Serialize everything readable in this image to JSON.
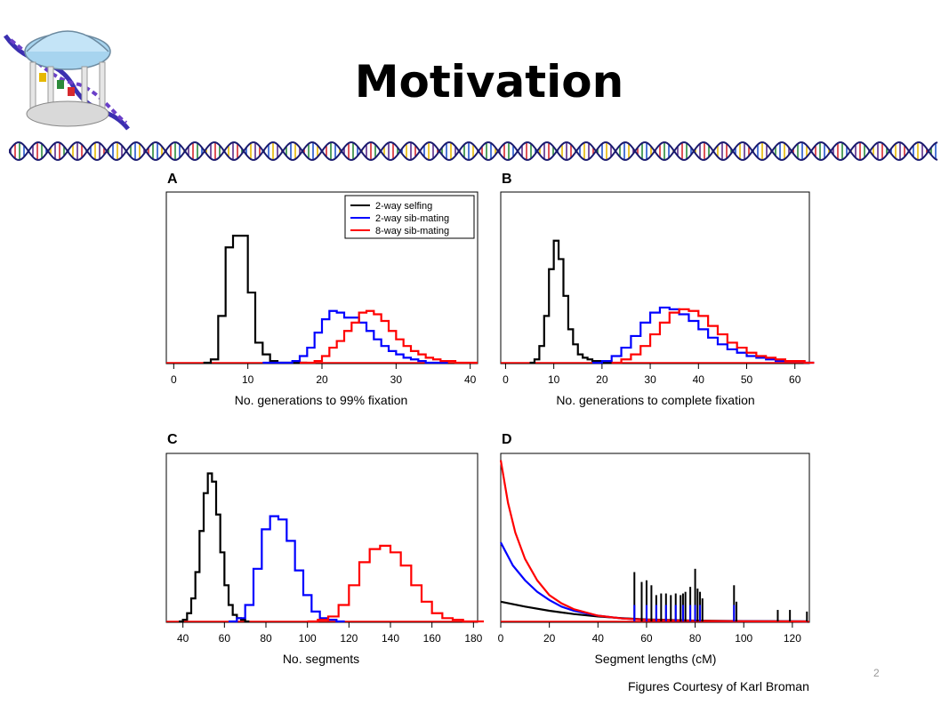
{
  "slide": {
    "title": "Motivation",
    "slide_number": "2",
    "credit": "Figures Courtesy of Karl Broman"
  },
  "logo": {
    "icon": "old-well-dna-logo-icon"
  },
  "divider": {
    "icon": "dna-helix-divider-icon",
    "colors": [
      "#5b2d8a",
      "#d6292e",
      "#2c8a3a",
      "#2255cc",
      "#e6b800"
    ]
  },
  "colors": {
    "selfing": "#000000",
    "sib": "#0000ff",
    "eight": "#ff0000"
  },
  "chart_data": [
    {
      "id": "A",
      "panel_label": "A",
      "type": "line",
      "style": "step-histogram",
      "xlabel": "No. generations to 99% fixation",
      "ylabel": "",
      "xlim": [
        -1,
        41
      ],
      "ylim": [
        0,
        1
      ],
      "xticks": [
        0,
        10,
        20,
        30,
        40
      ],
      "legend": {
        "position": "top-right",
        "entries": [
          "2-way selfing",
          "2-way sib-mating",
          "8-way sib-mating"
        ]
      },
      "series": [
        {
          "name": "2-way selfing",
          "color": "#000000",
          "x": [
            4,
            5,
            6,
            7,
            8,
            9,
            10,
            11,
            12,
            13,
            14,
            15,
            16,
            17
          ],
          "values": [
            0,
            0.02,
            0.28,
            0.69,
            0.76,
            0.76,
            0.42,
            0.12,
            0.05,
            0.01,
            0,
            0,
            0,
            0
          ]
        },
        {
          "name": "2-way sib-mating",
          "color": "#0000ff",
          "x": [
            12,
            13,
            14,
            15,
            16,
            17,
            18,
            19,
            20,
            21,
            22,
            23,
            24,
            25,
            26,
            27,
            28,
            29,
            30,
            31,
            32,
            33,
            34,
            35,
            36
          ],
          "values": [
            0,
            0,
            0,
            0,
            0.01,
            0.04,
            0.09,
            0.18,
            0.26,
            0.31,
            0.3,
            0.27,
            0.27,
            0.24,
            0.19,
            0.14,
            0.1,
            0.07,
            0.05,
            0.03,
            0.02,
            0.01,
            0,
            0,
            0
          ]
        },
        {
          "name": "8-way sib-mating",
          "color": "#ff0000",
          "x": [
            17,
            18,
            19,
            20,
            21,
            22,
            23,
            24,
            25,
            26,
            27,
            28,
            29,
            30,
            31,
            32,
            33,
            34,
            35,
            36,
            37,
            38,
            39,
            40
          ],
          "values": [
            0,
            0,
            0.01,
            0.04,
            0.09,
            0.13,
            0.19,
            0.24,
            0.3,
            0.31,
            0.29,
            0.25,
            0.19,
            0.14,
            0.1,
            0.07,
            0.05,
            0.03,
            0.02,
            0.01,
            0.01,
            0,
            0,
            0
          ]
        }
      ]
    },
    {
      "id": "B",
      "panel_label": "B",
      "type": "line",
      "style": "step-histogram",
      "xlabel": "No. generations to complete fixation",
      "ylabel": "",
      "xlim": [
        -1,
        63
      ],
      "ylim": [
        0,
        1
      ],
      "xticks": [
        0,
        10,
        20,
        30,
        40,
        50,
        60
      ],
      "series": [
        {
          "name": "2-way selfing",
          "color": "#000000",
          "x": [
            5,
            6,
            7,
            8,
            9,
            10,
            11,
            12,
            13,
            14,
            15,
            16,
            17,
            18,
            19,
            20,
            21
          ],
          "values": [
            0,
            0.02,
            0.1,
            0.28,
            0.56,
            0.73,
            0.62,
            0.4,
            0.2,
            0.11,
            0.05,
            0.03,
            0.02,
            0.01,
            0.01,
            0,
            0
          ]
        },
        {
          "name": "2-way sib-mating",
          "color": "#0000ff",
          "x": [
            18,
            20,
            22,
            24,
            26,
            28,
            30,
            32,
            34,
            36,
            38,
            40,
            42,
            44,
            46,
            48,
            50,
            52,
            54,
            56,
            58,
            60,
            62
          ],
          "values": [
            0,
            0.01,
            0.04,
            0.09,
            0.16,
            0.24,
            0.3,
            0.33,
            0.32,
            0.29,
            0.25,
            0.2,
            0.15,
            0.11,
            0.08,
            0.06,
            0.04,
            0.03,
            0.02,
            0.01,
            0.01,
            0.01,
            0
          ]
        },
        {
          "name": "8-way sib-mating",
          "color": "#ff0000",
          "x": [
            22,
            24,
            26,
            28,
            30,
            32,
            34,
            36,
            38,
            40,
            42,
            44,
            46,
            48,
            50,
            52,
            54,
            56,
            58,
            60,
            62
          ],
          "values": [
            0,
            0.02,
            0.05,
            0.1,
            0.17,
            0.24,
            0.3,
            0.32,
            0.31,
            0.28,
            0.22,
            0.17,
            0.12,
            0.09,
            0.06,
            0.04,
            0.03,
            0.02,
            0.01,
            0.01,
            0
          ]
        }
      ]
    },
    {
      "id": "C",
      "panel_label": "C",
      "type": "line",
      "style": "step-histogram",
      "xlabel": "No. segments",
      "ylabel": "",
      "xlim": [
        32,
        182
      ],
      "ylim": [
        0,
        1
      ],
      "xticks": [
        40,
        60,
        80,
        100,
        120,
        140,
        160,
        180
      ],
      "series": [
        {
          "name": "2-way selfing",
          "color": "#000000",
          "x": [
            38,
            40,
            42,
            44,
            46,
            48,
            50,
            52,
            54,
            56,
            58,
            60,
            62,
            64,
            66,
            68,
            70
          ],
          "values": [
            0,
            0.01,
            0.05,
            0.14,
            0.3,
            0.55,
            0.78,
            0.9,
            0.85,
            0.65,
            0.42,
            0.22,
            0.1,
            0.04,
            0.02,
            0.01,
            0
          ]
        },
        {
          "name": "2-way sib-mating",
          "color": "#0000ff",
          "x": [
            62,
            66,
            70,
            74,
            78,
            82,
            86,
            90,
            94,
            98,
            102,
            106,
            110,
            114
          ],
          "values": [
            0,
            0.02,
            0.1,
            0.32,
            0.56,
            0.64,
            0.62,
            0.49,
            0.31,
            0.16,
            0.06,
            0.02,
            0.01,
            0
          ]
        },
        {
          "name": "8-way sib-mating",
          "color": "#ff0000",
          "x": [
            100,
            105,
            110,
            115,
            120,
            125,
            130,
            135,
            140,
            145,
            150,
            155,
            160,
            165,
            170,
            175,
            180
          ],
          "values": [
            0,
            0.01,
            0.03,
            0.1,
            0.22,
            0.36,
            0.44,
            0.46,
            0.42,
            0.34,
            0.22,
            0.12,
            0.05,
            0.02,
            0.01,
            0,
            0
          ]
        }
      ]
    },
    {
      "id": "D",
      "panel_label": "D",
      "type": "line",
      "xlabel": "Segment lengths (cM)",
      "ylabel": "",
      "xlim": [
        0,
        127
      ],
      "ylim": [
        0,
        1
      ],
      "xticks": [
        0,
        20,
        40,
        60,
        80,
        100,
        120
      ],
      "series": [
        {
          "name": "2-way selfing",
          "color": "#000000",
          "x": [
            0,
            10,
            20,
            30,
            40,
            50,
            60,
            80,
            100,
            126
          ],
          "values": [
            0.12,
            0.09,
            0.065,
            0.045,
            0.03,
            0.02,
            0.012,
            0.005,
            0.002,
            0
          ]
        },
        {
          "name": "2-way sib-mating",
          "color": "#0000ff",
          "x": [
            0,
            5,
            10,
            15,
            20,
            25,
            30,
            40,
            50,
            60,
            80,
            100,
            126
          ],
          "values": [
            0.48,
            0.34,
            0.25,
            0.18,
            0.13,
            0.09,
            0.065,
            0.035,
            0.018,
            0.01,
            0.003,
            0.001,
            0
          ]
        },
        {
          "name": "8-way sib-mating",
          "color": "#ff0000",
          "x": [
            0,
            3,
            6,
            10,
            15,
            20,
            25,
            30,
            40,
            50,
            60,
            80,
            100,
            126
          ],
          "values": [
            0.98,
            0.72,
            0.54,
            0.38,
            0.25,
            0.16,
            0.11,
            0.075,
            0.035,
            0.018,
            0.01,
            0.003,
            0.001,
            0
          ]
        }
      ],
      "spikes": [
        {
          "color": "#000000",
          "x": [
            55,
            58,
            60,
            62,
            64,
            66,
            68,
            70,
            72,
            74,
            75,
            76,
            78,
            80,
            81,
            82,
            83,
            96,
            97,
            114,
            119,
            126
          ],
          "values": [
            0.3,
            0.24,
            0.25,
            0.22,
            0.16,
            0.17,
            0.17,
            0.16,
            0.17,
            0.16,
            0.17,
            0.18,
            0.21,
            0.32,
            0.2,
            0.18,
            0.14,
            0.22,
            0.12,
            0.07,
            0.07,
            0.06
          ]
        },
        {
          "color": "#0000ff",
          "x": [
            55,
            60,
            64,
            68,
            72,
            75,
            78,
            80,
            82,
            96
          ],
          "values": [
            0.1,
            0.1,
            0.1,
            0.1,
            0.1,
            0.1,
            0.1,
            0.1,
            0.1,
            0.1
          ]
        }
      ]
    }
  ]
}
